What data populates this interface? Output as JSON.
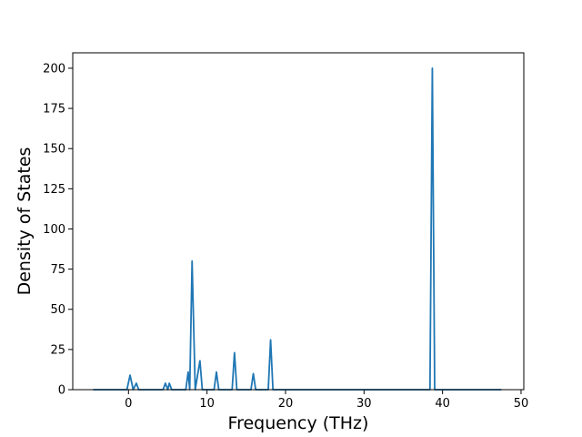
{
  "chart_data": {
    "type": "line",
    "xlabel": "Frequency (THz)",
    "ylabel": "Density of States",
    "x": [
      -4.5,
      -0.2,
      0.2,
      0.6,
      1.0,
      1.3,
      4.4,
      4.7,
      5.0,
      5.2,
      5.5,
      7.3,
      7.6,
      7.8,
      8.1,
      8.5,
      9.1,
      9.4,
      10.9,
      11.2,
      11.5,
      13.2,
      13.5,
      13.8,
      15.6,
      15.9,
      16.2,
      17.8,
      18.1,
      18.4,
      38.4,
      38.7,
      39.0,
      47.5
    ],
    "values": [
      0,
      0,
      9,
      0,
      4,
      0,
      0,
      4,
      0,
      4,
      0,
      0,
      11,
      0,
      80,
      0,
      18,
      0,
      0,
      11,
      0,
      0,
      23,
      0,
      0,
      10,
      0,
      0,
      31,
      0,
      0,
      200,
      0,
      0
    ],
    "color": "#1f77b4",
    "xlim": [
      -7.1,
      50.35
    ],
    "ylim": [
      0,
      209.6
    ],
    "xticks": [
      0,
      10,
      20,
      30,
      40,
      50
    ],
    "yticks": [
      0,
      25,
      50,
      75,
      100,
      125,
      150,
      175,
      200
    ],
    "grid": false
  }
}
